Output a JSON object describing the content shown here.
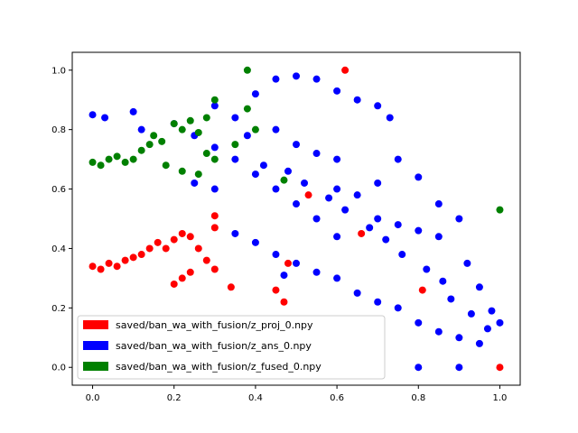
{
  "chart_data": {
    "type": "scatter",
    "xlim": [
      -0.05,
      1.05
    ],
    "ylim": [
      -0.06,
      1.06
    ],
    "x_ticks": [
      "0.0",
      "0.2",
      "0.4",
      "0.6",
      "0.8",
      "1.0"
    ],
    "y_ticks": [
      "0.0",
      "0.2",
      "0.4",
      "0.6",
      "0.8",
      "1.0"
    ],
    "grid": false,
    "legend_position": "lower-left",
    "series": [
      {
        "name": "saved/ban_wa_with_fusion/z_proj_0.npy",
        "color": "#ff0000",
        "points": [
          [
            0.0,
            0.34
          ],
          [
            0.02,
            0.33
          ],
          [
            0.04,
            0.35
          ],
          [
            0.06,
            0.34
          ],
          [
            0.08,
            0.36
          ],
          [
            0.1,
            0.37
          ],
          [
            0.12,
            0.38
          ],
          [
            0.14,
            0.4
          ],
          [
            0.16,
            0.42
          ],
          [
            0.18,
            0.4
          ],
          [
            0.2,
            0.43
          ],
          [
            0.22,
            0.45
          ],
          [
            0.24,
            0.44
          ],
          [
            0.26,
            0.4
          ],
          [
            0.28,
            0.36
          ],
          [
            0.3,
            0.47
          ],
          [
            0.3,
            0.51
          ],
          [
            0.3,
            0.33
          ],
          [
            0.2,
            0.28
          ],
          [
            0.22,
            0.3
          ],
          [
            0.24,
            0.32
          ],
          [
            0.34,
            0.27
          ],
          [
            0.45,
            0.26
          ],
          [
            0.47,
            0.22
          ],
          [
            0.48,
            0.35
          ],
          [
            0.53,
            0.58
          ],
          [
            0.62,
            1.0
          ],
          [
            0.66,
            0.45
          ],
          [
            1.0,
            0.0
          ],
          [
            0.81,
            0.26
          ]
        ]
      },
      {
        "name": "saved/ban_wa_with_fusion/z_ans_0.npy",
        "color": "#0000ff",
        "points": [
          [
            0.0,
            0.85
          ],
          [
            0.03,
            0.84
          ],
          [
            0.1,
            0.86
          ],
          [
            0.12,
            0.8
          ],
          [
            0.2,
            0.82
          ],
          [
            0.3,
            0.88
          ],
          [
            0.4,
            0.92
          ],
          [
            0.45,
            0.97
          ],
          [
            0.5,
            0.98
          ],
          [
            0.55,
            0.97
          ],
          [
            0.6,
            0.93
          ],
          [
            0.65,
            0.9
          ],
          [
            0.7,
            0.88
          ],
          [
            0.73,
            0.84
          ],
          [
            0.75,
            0.7
          ],
          [
            0.8,
            0.64
          ],
          [
            0.85,
            0.55
          ],
          [
            0.9,
            0.5
          ],
          [
            0.92,
            0.35
          ],
          [
            0.95,
            0.27
          ],
          [
            1.0,
            0.15
          ],
          [
            0.98,
            0.19
          ],
          [
            0.8,
            0.0
          ],
          [
            0.9,
            0.0
          ],
          [
            0.6,
            0.44
          ],
          [
            0.55,
            0.5
          ],
          [
            0.5,
            0.55
          ],
          [
            0.45,
            0.6
          ],
          [
            0.4,
            0.65
          ],
          [
            0.35,
            0.7
          ],
          [
            0.3,
            0.6
          ],
          [
            0.25,
            0.62
          ],
          [
            0.35,
            0.45
          ],
          [
            0.4,
            0.42
          ],
          [
            0.45,
            0.38
          ],
          [
            0.47,
            0.31
          ],
          [
            0.5,
            0.35
          ],
          [
            0.55,
            0.32
          ],
          [
            0.6,
            0.3
          ],
          [
            0.65,
            0.25
          ],
          [
            0.7,
            0.22
          ],
          [
            0.75,
            0.2
          ],
          [
            0.8,
            0.15
          ],
          [
            0.85,
            0.12
          ],
          [
            0.9,
            0.1
          ],
          [
            0.95,
            0.08
          ],
          [
            0.7,
            0.5
          ],
          [
            0.75,
            0.48
          ],
          [
            0.8,
            0.46
          ],
          [
            0.85,
            0.44
          ],
          [
            0.6,
            0.6
          ],
          [
            0.65,
            0.58
          ],
          [
            0.7,
            0.62
          ],
          [
            0.5,
            0.75
          ],
          [
            0.55,
            0.72
          ],
          [
            0.6,
            0.7
          ],
          [
            0.45,
            0.8
          ],
          [
            0.35,
            0.84
          ],
          [
            0.25,
            0.78
          ],
          [
            0.3,
            0.74
          ],
          [
            0.38,
            0.78
          ],
          [
            0.42,
            0.68
          ],
          [
            0.48,
            0.66
          ],
          [
            0.52,
            0.62
          ],
          [
            0.58,
            0.57
          ],
          [
            0.62,
            0.53
          ],
          [
            0.68,
            0.47
          ],
          [
            0.72,
            0.43
          ],
          [
            0.76,
            0.38
          ],
          [
            0.82,
            0.33
          ],
          [
            0.86,
            0.29
          ],
          [
            0.88,
            0.23
          ],
          [
            0.93,
            0.18
          ],
          [
            0.97,
            0.13
          ]
        ]
      },
      {
        "name": "saved/ban_wa_with_fusion/z_fused_0.npy",
        "color": "#008000",
        "points": [
          [
            0.0,
            0.69
          ],
          [
            0.02,
            0.68
          ],
          [
            0.04,
            0.7
          ],
          [
            0.06,
            0.71
          ],
          [
            0.08,
            0.69
          ],
          [
            0.1,
            0.7
          ],
          [
            0.12,
            0.73
          ],
          [
            0.14,
            0.75
          ],
          [
            0.15,
            0.78
          ],
          [
            0.17,
            0.76
          ],
          [
            0.2,
            0.82
          ],
          [
            0.22,
            0.8
          ],
          [
            0.24,
            0.83
          ],
          [
            0.26,
            0.79
          ],
          [
            0.28,
            0.84
          ],
          [
            0.3,
            0.9
          ],
          [
            0.38,
            1.0
          ],
          [
            0.38,
            0.87
          ],
          [
            0.4,
            0.8
          ],
          [
            0.35,
            0.75
          ],
          [
            0.28,
            0.72
          ],
          [
            0.22,
            0.66
          ],
          [
            0.18,
            0.68
          ],
          [
            0.26,
            0.65
          ],
          [
            0.3,
            0.7
          ],
          [
            0.47,
            0.63
          ],
          [
            1.0,
            0.53
          ]
        ]
      }
    ]
  }
}
